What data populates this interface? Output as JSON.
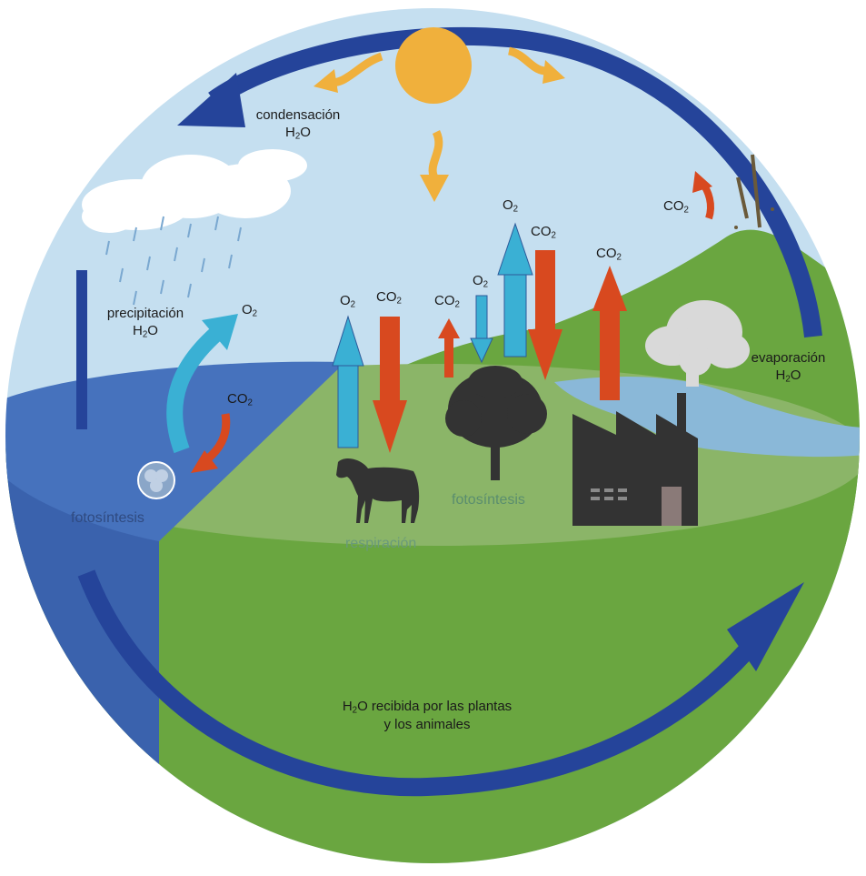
{
  "diagram": {
    "labels": {
      "condensacion": "condensación",
      "precipitacion": "precipitación",
      "evaporacion": "evaporación",
      "h2o_prefix": "H",
      "h2o_sub": "2",
      "h2o_suffix": "O",
      "o2_main": "O",
      "o2_sub": "2",
      "co2_main": "CO",
      "co2_sub": "2",
      "fotosintesis": "fotosíntesis",
      "respiracion": "respiración",
      "received_line1_suffix": "O recibida por las plantas",
      "received_line2": "y los animales"
    },
    "colors": {
      "sky": "#c5dff0",
      "ground": "#6aa640",
      "ground_light": "#8bb568",
      "water": "#3e6bb8",
      "water_side": "#3a62ad",
      "cycle_arrow": "#25449a",
      "sun": "#f0b03c",
      "o2_arrow": "#3ab0d4",
      "co2_arrow": "#d8491f",
      "silhouette": "#333333",
      "photosynthesis_text": "#5a8e6e",
      "respiration_text": "#6a9a7a",
      "ocean_text": "#2f4a80"
    },
    "icons": [
      "sun-icon",
      "cloud-icon",
      "rain-icon",
      "horse-icon",
      "tree-icon",
      "factory-icon",
      "smoke-icon",
      "volcano-icon",
      "plankton-icon"
    ]
  }
}
